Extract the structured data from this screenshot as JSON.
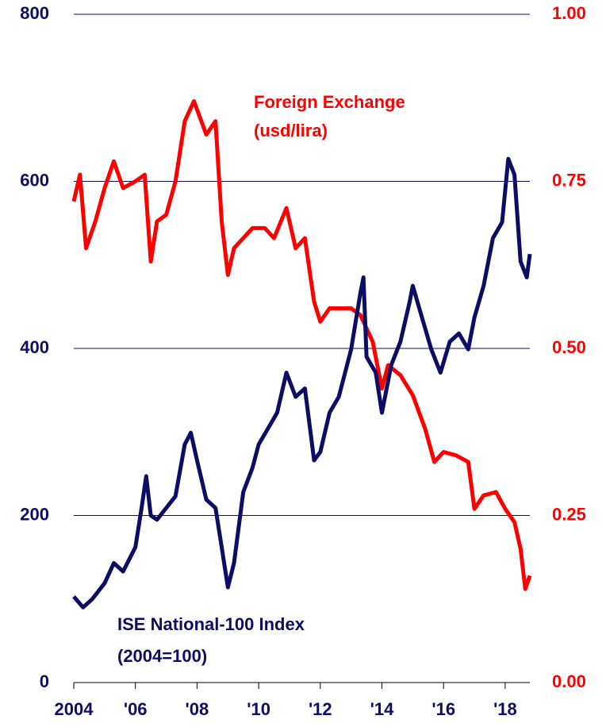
{
  "chart_data": {
    "type": "line",
    "annotations": [
      {
        "text": "Foreign Exchange",
        "color": "#ff0000"
      },
      {
        "text": "(usd/lira)",
        "color": "#ff0000"
      },
      {
        "text": "ISE National-100 Index",
        "color": "#0d0d66"
      },
      {
        "text": "(2004=100)",
        "color": "#0d0d66"
      }
    ],
    "xlim": [
      2004,
      2018.8
    ],
    "xticks": [
      {
        "value": 2004,
        "label": "2004"
      },
      {
        "value": 2006,
        "label": "'06"
      },
      {
        "value": 2008,
        "label": "'08"
      },
      {
        "value": 2010,
        "label": "'10"
      },
      {
        "value": 2012,
        "label": "'12"
      },
      {
        "value": 2014,
        "label": "'14"
      },
      {
        "value": 2016,
        "label": "'16"
      },
      {
        "value": 2018,
        "label": "'18"
      }
    ],
    "ylim": [
      0,
      800
    ],
    "yticks": [
      0,
      200,
      400,
      600,
      800
    ],
    "y2lim": [
      0,
      1
    ],
    "y2ticks": [
      {
        "value": 0,
        "label": "0.00"
      },
      0.25,
      {
        "value": 0.5,
        "label": "0.50"
      },
      0.75,
      {
        "value": 1,
        "label": "1.00"
      }
    ],
    "grid": true,
    "series": [
      {
        "name": "ISE National-100 Index",
        "color": "#0d0d66",
        "axis": "y",
        "x": [
          2004.0,
          2004.3,
          2004.6,
          2005.0,
          2005.3,
          2005.6,
          2006.0,
          2006.2,
          2006.35,
          2006.5,
          2006.7,
          2007.0,
          2007.3,
          2007.6,
          2007.8,
          2008.0,
          2008.3,
          2008.6,
          2008.8,
          2009.0,
          2009.2,
          2009.5,
          2009.8,
          2010.0,
          2010.3,
          2010.6,
          2010.9,
          2011.2,
          2011.5,
          2011.8,
          2012.0,
          2012.3,
          2012.6,
          2013.0,
          2013.3,
          2013.4,
          2013.5,
          2013.8,
          2014.0,
          2014.3,
          2014.6,
          2014.9,
          2015.0,
          2015.3,
          2015.6,
          2015.9,
          2016.2,
          2016.5,
          2016.8,
          2017.0,
          2017.3,
          2017.6,
          2017.9,
          2018.1,
          2018.3,
          2018.5,
          2018.7,
          2018.8
        ],
        "values": [
          103,
          90,
          100,
          119,
          143,
          133,
          162,
          209,
          247,
          200,
          195,
          209,
          223,
          285,
          299,
          266,
          219,
          209,
          162,
          114,
          143,
          228,
          257,
          285,
          304,
          323,
          371,
          342,
          352,
          266,
          276,
          323,
          342,
          399,
          466,
          485,
          390,
          371,
          323,
          380,
          408,
          456,
          475,
          437,
          399,
          371,
          408,
          418,
          399,
          437,
          475,
          532,
          551,
          627,
          608,
          504,
          485,
          513
        ]
      },
      {
        "name": "Foreign Exchange",
        "color": "#ff0000",
        "axis": "y2",
        "x": [
          2004.0,
          2004.2,
          2004.4,
          2004.7,
          2005.0,
          2005.3,
          2005.6,
          2006.0,
          2006.3,
          2006.5,
          2006.7,
          2007.0,
          2007.3,
          2007.6,
          2007.9,
          2008.3,
          2008.6,
          2008.8,
          2009.0,
          2009.2,
          2009.5,
          2009.8,
          2010.2,
          2010.5,
          2010.9,
          2011.2,
          2011.5,
          2011.8,
          2012.0,
          2012.3,
          2012.7,
          2013.0,
          2013.3,
          2013.7,
          2014.0,
          2014.2,
          2014.6,
          2015.0,
          2015.4,
          2015.7,
          2016.0,
          2016.4,
          2016.8,
          2017.0,
          2017.3,
          2017.7,
          2018.0,
          2018.3,
          2018.5,
          2018.65,
          2018.8
        ],
        "values": [
          0.72,
          0.76,
          0.65,
          0.69,
          0.74,
          0.78,
          0.74,
          0.75,
          0.76,
          0.63,
          0.69,
          0.7,
          0.75,
          0.84,
          0.87,
          0.82,
          0.84,
          0.69,
          0.61,
          0.65,
          0.665,
          0.68,
          0.68,
          0.665,
          0.71,
          0.65,
          0.665,
          0.57,
          0.54,
          0.56,
          0.56,
          0.56,
          0.55,
          0.51,
          0.44,
          0.475,
          0.46,
          0.43,
          0.38,
          0.33,
          0.345,
          0.34,
          0.33,
          0.26,
          0.28,
          0.285,
          0.26,
          0.24,
          0.2,
          0.14,
          0.16
        ]
      }
    ]
  }
}
